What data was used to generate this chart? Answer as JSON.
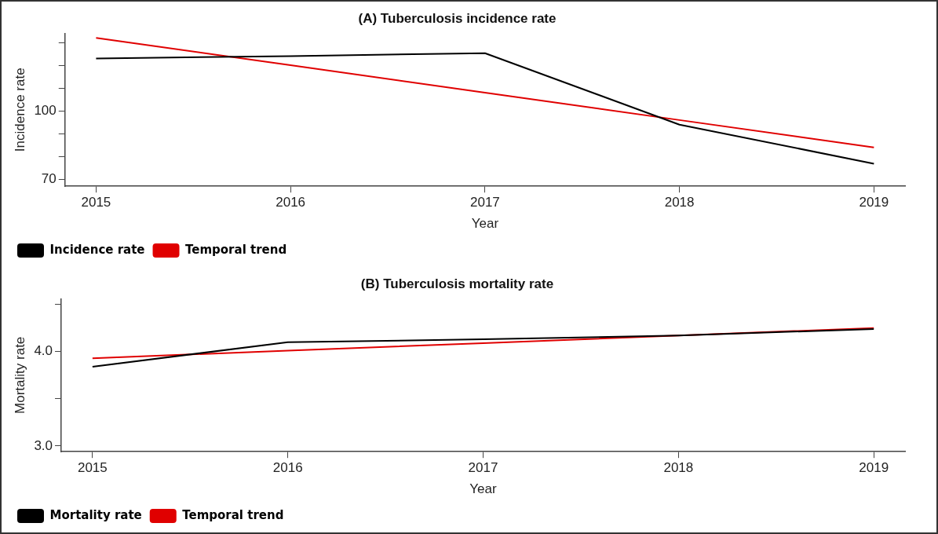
{
  "chart_data": [
    {
      "type": "line",
      "title": "(A) Tuberculosis incidence rate",
      "xlabel": "Year",
      "ylabel": "Incidence rate",
      "x": [
        2015,
        2016,
        2017,
        2018,
        2019
      ],
      "xlim": [
        2014.84,
        2019.16
      ],
      "xticks": [
        2015,
        2016,
        2017,
        2018,
        2019
      ],
      "ylim": [
        67,
        134
      ],
      "yticks": [
        70,
        {
          "value": 80,
          "label": null
        },
        {
          "value": 90,
          "label": null
        },
        100,
        {
          "value": 110,
          "label": null
        },
        {
          "value": 120,
          "label": null
        },
        {
          "value": 130,
          "label": null
        }
      ],
      "series": [
        {
          "name": "Incidence rate",
          "color": "#000000",
          "values": [
            123,
            124,
            125.3,
            94,
            76.9
          ]
        },
        {
          "name": "Temporal trend",
          "color": "#e00000",
          "values": [
            132,
            120,
            108,
            96,
            84
          ]
        }
      ],
      "grid": false,
      "legend": "bottom left",
      "marker": "none"
    },
    {
      "type": "line",
      "title": "(B) Tuberculosis mortality rate",
      "xlabel": "Year",
      "ylabel": "Mortality rate",
      "x": [
        2015,
        2016,
        2017,
        2018,
        2019
      ],
      "xlim": [
        2014.84,
        2019.16
      ],
      "xticks": [
        2015,
        2016,
        2017,
        2018,
        2019
      ],
      "ylim": [
        2.94,
        4.56
      ],
      "yticks": [
        {
          "value": 3,
          "label": "3.0"
        },
        {
          "value": 3.5,
          "label": null
        },
        {
          "value": 4,
          "label": "4.0"
        },
        {
          "value": 4.5,
          "label": null
        }
      ],
      "series": [
        {
          "name": "Mortality rate",
          "color": "#000000",
          "values": [
            3.84,
            4.1,
            4.13,
            4.17,
            4.24
          ]
        },
        {
          "name": "Temporal trend",
          "color": "#e00000",
          "values": [
            3.93,
            4.01,
            4.09,
            4.17,
            4.25
          ]
        }
      ],
      "grid": false,
      "legend": "bottom left",
      "marker": "none"
    }
  ]
}
